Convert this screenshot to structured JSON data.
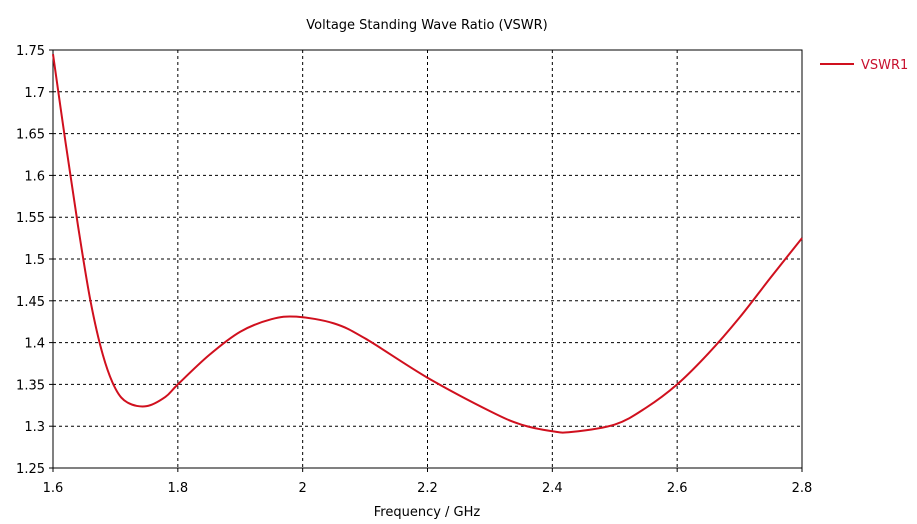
{
  "chart_data": {
    "type": "line",
    "title": "Voltage Standing Wave Ratio (VSWR)",
    "xlabel": "Frequency / GHz",
    "ylabel": "",
    "xlim": [
      1.6,
      2.8
    ],
    "ylim": [
      1.25,
      1.75
    ],
    "xticks": [
      "1.6",
      "1.8",
      "2",
      "2.2",
      "2.4",
      "2.6",
      "2.8"
    ],
    "yticks": [
      "1.25",
      "1.3",
      "1.35",
      "1.4",
      "1.45",
      "1.5",
      "1.55",
      "1.6",
      "1.65",
      "1.7",
      "1.75"
    ],
    "grid": true,
    "legend_position": "top-right-outside",
    "series": [
      {
        "name": "VSWR1",
        "color": "#d0101e",
        "x": [
          1.6,
          1.62,
          1.64,
          1.66,
          1.68,
          1.7,
          1.72,
          1.75,
          1.78,
          1.8,
          1.85,
          1.9,
          1.95,
          1.99,
          2.05,
          2.1,
          2.2,
          2.3,
          2.35,
          2.4,
          2.43,
          2.5,
          2.55,
          2.6,
          2.65,
          2.7,
          2.75,
          2.8
        ],
        "y": [
          1.745,
          1.64,
          1.54,
          1.45,
          1.385,
          1.345,
          1.328,
          1.324,
          1.335,
          1.35,
          1.385,
          1.413,
          1.428,
          1.431,
          1.423,
          1.405,
          1.358,
          1.318,
          1.302,
          1.294,
          1.293,
          1.302,
          1.322,
          1.35,
          1.387,
          1.43,
          1.478,
          1.525
        ]
      }
    ]
  }
}
